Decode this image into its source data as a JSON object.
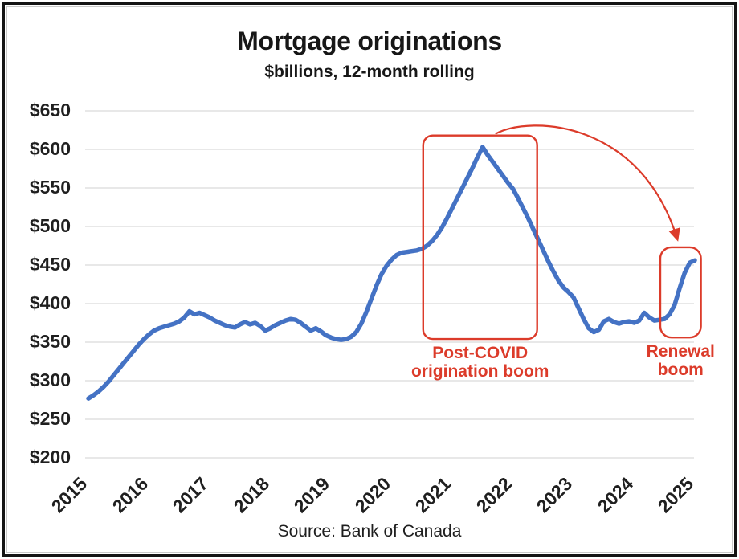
{
  "figure": {
    "title": "Mortgage originations",
    "subtitle": "$billions, 12-month rolling",
    "source": "Source: Bank of Canada"
  },
  "colors": {
    "line": "#4472C4",
    "annotation": "#DC3B2A",
    "gridline": "#D9D9D9",
    "text": "#1A1A1A"
  },
  "chart_data": {
    "type": "line",
    "title": "Mortgage originations",
    "subtitle": "$billions, 12-month rolling",
    "xlabel": "",
    "ylabel": "$billions, 12-month rolling",
    "grid": "horizontal",
    "legend": "none",
    "source": "Source: Bank of Canada",
    "x_axis": {
      "start_year": 2015,
      "points_per_year": 12,
      "ticks": [
        "2015",
        "2016",
        "2017",
        "2018",
        "2019",
        "2020",
        "2021",
        "2022",
        "2023",
        "2024",
        "2025"
      ]
    },
    "y_axis": {
      "ylim": [
        200,
        650
      ],
      "ticks": [
        {
          "value": 650,
          "label": "$650"
        },
        {
          "value": 600,
          "label": "$600"
        },
        {
          "value": 550,
          "label": "$550"
        },
        {
          "value": 500,
          "label": "$500"
        },
        {
          "value": 450,
          "label": "$450"
        },
        {
          "value": 400,
          "label": "$400"
        },
        {
          "value": 350,
          "label": "$350"
        },
        {
          "value": 300,
          "label": "$300"
        },
        {
          "value": 250,
          "label": "$250"
        },
        {
          "value": 200,
          "label": "$200"
        }
      ]
    },
    "series": [
      {
        "name": "Mortgage originations ($billions, 12-month rolling)",
        "color": "#4472C4",
        "values": [
          277,
          281,
          286,
          292,
          299,
          307,
          315,
          323,
          331,
          339,
          347,
          354,
          360,
          365,
          368,
          370,
          372,
          374,
          377,
          382,
          390,
          386,
          388,
          385,
          382,
          378,
          375,
          372,
          370,
          369,
          373,
          376,
          373,
          375,
          371,
          365,
          368,
          372,
          375,
          378,
          380,
          379,
          375,
          370,
          365,
          368,
          364,
          359,
          356,
          354,
          353,
          354,
          357,
          363,
          374,
          389,
          406,
          423,
          438,
          449,
          457,
          463,
          466,
          467,
          468,
          469,
          471,
          475,
          481,
          489,
          499,
          511,
          524,
          537,
          550,
          563,
          576,
          590,
          603,
          593,
          584,
          575,
          566,
          557,
          549,
          537,
          524,
          511,
          497,
          483,
          469,
          455,
          442,
          430,
          421,
          415,
          408,
          394,
          380,
          368,
          363,
          366,
          377,
          380,
          376,
          374,
          376,
          377,
          375,
          378,
          388,
          382,
          378,
          379,
          380,
          386,
          398,
          420,
          440,
          453,
          456
        ]
      }
    ],
    "annotations": {
      "color": "#DC3B2A",
      "boxes": [
        {
          "id": "post-covid-box",
          "label_lines": [
            "Post-COVID",
            "origination boom"
          ],
          "from_year": 2020.52,
          "to_year": 2022.4,
          "from_value": 354,
          "to_value": 618,
          "corner_radius": 12
        },
        {
          "id": "renewal-box",
          "label_lines": [
            "Renewal",
            "boom"
          ],
          "from_year": 2024.43,
          "to_year": 2025.1,
          "from_value": 356,
          "to_value": 473,
          "corner_radius": 14
        }
      ],
      "arrow": {
        "from_box": "post-covid-box",
        "to_box": "renewal-box"
      }
    }
  }
}
